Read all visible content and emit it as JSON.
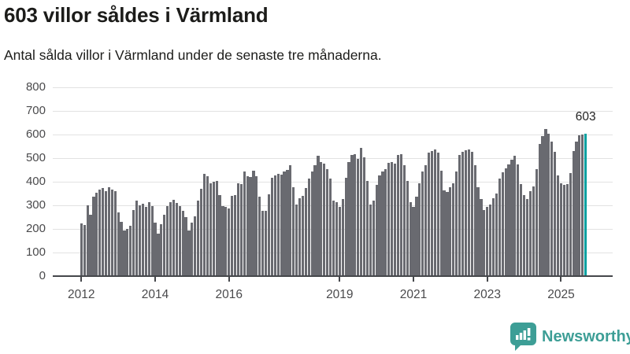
{
  "header": {
    "title": "603 villor såldes i Värmland",
    "subtitle": "Antal sålda villor i Värmland under de senaste tre månaderna."
  },
  "chart_data": {
    "type": "bar",
    "title": "603 villor såldes i Värmland",
    "subtitle": "Antal sålda villor i Värmland under de senaste tre månaderna.",
    "x_start": "2012-01",
    "x_end": "2025-09",
    "frequency": "monthly",
    "ylim": [
      0,
      800
    ],
    "yticks": [
      0,
      100,
      200,
      300,
      400,
      500,
      600,
      700,
      800
    ],
    "grid": true,
    "bar_color": "#696a70",
    "highlight_color": "#00a0a0",
    "annotation": {
      "text": "603",
      "month_index": 164
    },
    "xticks": [
      {
        "label": "2012",
        "month_index": 0
      },
      {
        "label": "2014",
        "month_index": 24
      },
      {
        "label": "2016",
        "month_index": 48
      },
      {
        "label": "2019",
        "month_index": 84
      },
      {
        "label": "2021",
        "month_index": 108
      },
      {
        "label": "2023",
        "month_index": 132
      },
      {
        "label": "2025",
        "month_index": 156
      }
    ],
    "values": [
      222,
      217,
      300,
      259,
      337,
      353,
      367,
      372,
      361,
      376,
      367,
      359,
      270,
      231,
      194,
      201,
      214,
      281,
      320,
      301,
      306,
      294,
      312,
      298,
      228,
      181,
      219,
      259,
      296,
      315,
      322,
      310,
      296,
      278,
      250,
      194,
      226,
      253,
      320,
      370,
      433,
      425,
      392,
      400,
      403,
      344,
      298,
      292,
      287,
      339,
      344,
      392,
      389,
      444,
      422,
      420,
      446,
      425,
      337,
      276,
      278,
      348,
      417,
      428,
      434,
      431,
      442,
      450,
      470,
      376,
      303,
      331,
      339,
      375,
      414,
      442,
      470,
      509,
      483,
      476,
      455,
      414,
      320,
      314,
      292,
      328,
      417,
      483,
      514,
      517,
      498,
      542,
      503,
      403,
      303,
      320,
      387,
      426,
      442,
      453,
      479,
      483,
      476,
      514,
      517,
      470,
      403,
      314,
      292,
      337,
      392,
      442,
      470,
      525,
      530,
      537,
      525,
      448,
      365,
      357,
      376,
      395,
      442,
      514,
      528,
      534,
      537,
      528,
      470,
      376,
      326,
      281,
      292,
      303,
      331,
      350,
      414,
      440,
      457,
      473,
      492,
      509,
      472,
      389,
      342,
      328,
      359,
      381,
      455,
      559,
      594,
      625,
      605,
      570,
      526,
      426,
      392,
      387,
      389,
      437,
      531,
      570,
      598,
      600,
      603
    ]
  },
  "footer": {
    "brand_name": "Newsworthy",
    "brand_color": "#3d9e96"
  }
}
